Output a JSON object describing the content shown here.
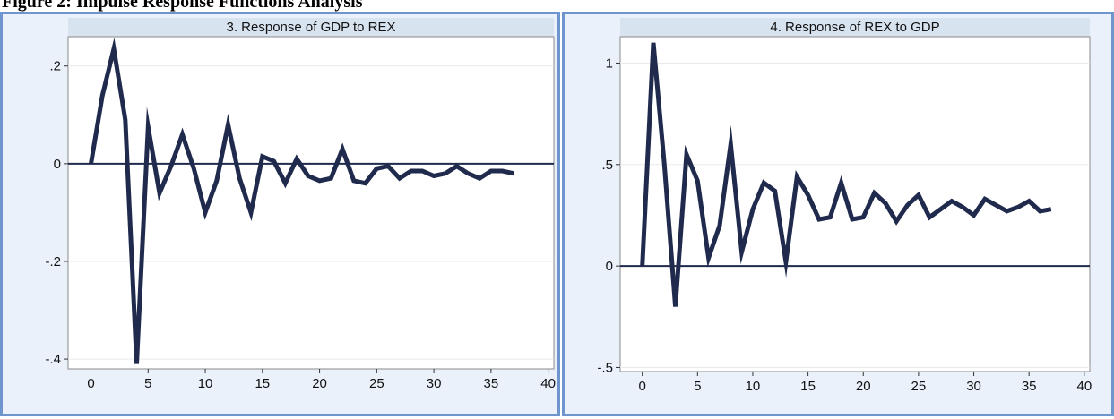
{
  "heading": "Figure 2: Impulse Response Functions Analysis",
  "chart_data": [
    {
      "type": "line",
      "title": "3. Response of GDP to REX",
      "xlabel": "",
      "ylabel": "",
      "xlim": [
        -2,
        40.5
      ],
      "ylim": [
        -0.42,
        0.26
      ],
      "x_ticks": [
        0,
        5,
        10,
        15,
        20,
        25,
        30,
        35,
        40
      ],
      "x_tick_labels": [
        "0",
        "5",
        "10",
        "15",
        "20",
        "25",
        "30",
        "35",
        "40"
      ],
      "y_ticks": [
        -0.4,
        -0.2,
        0,
        0.2
      ],
      "y_tick_labels": [
        "-.4",
        "-.2",
        "0",
        ".2"
      ],
      "zero_line": 0,
      "grid": true,
      "colors": {
        "line": "#1f2a4d",
        "plot_bg": "#ffffff",
        "panel_bg": "#eaf1fa",
        "title_bar": "#d8e3f0",
        "border": "#6f95cf"
      },
      "x": [
        0,
        1,
        2,
        3,
        4,
        5,
        6,
        7,
        8,
        9,
        10,
        11,
        12,
        13,
        14,
        15,
        16,
        17,
        18,
        19,
        20,
        21,
        22,
        23,
        24,
        25,
        26,
        27,
        28,
        29,
        30,
        31,
        32,
        33,
        34,
        35,
        36,
        37
      ],
      "series": [
        {
          "values": [
            0,
            0.14,
            0.235,
            0.09,
            -0.41,
            0.075,
            -0.06,
            -0.005,
            0.06,
            -0.01,
            -0.1,
            -0.035,
            0.08,
            -0.03,
            -0.1,
            0.015,
            0.005,
            -0.04,
            0.01,
            -0.025,
            -0.035,
            -0.03,
            0.03,
            -0.035,
            -0.04,
            -0.01,
            -0.005,
            -0.03,
            -0.015,
            -0.015,
            -0.025,
            -0.02,
            -0.005,
            -0.02,
            -0.03,
            -0.015,
            -0.015,
            -0.02
          ]
        }
      ]
    },
    {
      "type": "line",
      "title": "4. Response of REX to GDP",
      "xlabel": "",
      "ylabel": "",
      "xlim": [
        -2,
        40.5
      ],
      "ylim": [
        -0.52,
        1.13
      ],
      "x_ticks": [
        0,
        5,
        10,
        15,
        20,
        25,
        30,
        35,
        40
      ],
      "x_tick_labels": [
        "0",
        "5",
        "10",
        "15",
        "20",
        "25",
        "30",
        "35",
        "40"
      ],
      "y_ticks": [
        -0.5,
        0,
        0.5,
        1
      ],
      "y_tick_labels": [
        "-.5",
        "0",
        ".5",
        "1"
      ],
      "zero_line": 0,
      "grid": true,
      "colors": {
        "line": "#1f2a4d",
        "plot_bg": "#ffffff",
        "panel_bg": "#eaf1fa",
        "title_bar": "#d8e3f0",
        "border": "#6f95cf"
      },
      "x": [
        0,
        1,
        2,
        3,
        4,
        5,
        6,
        7,
        8,
        9,
        10,
        11,
        12,
        13,
        14,
        15,
        16,
        17,
        18,
        19,
        20,
        21,
        22,
        23,
        24,
        25,
        26,
        27,
        28,
        29,
        30,
        31,
        32,
        33,
        34,
        35,
        36,
        37
      ],
      "series": [
        {
          "values": [
            0,
            1.1,
            0.5,
            -0.2,
            0.55,
            0.42,
            0.04,
            0.2,
            0.6,
            0.07,
            0.28,
            0.41,
            0.37,
            0.02,
            0.44,
            0.35,
            0.23,
            0.24,
            0.41,
            0.23,
            0.24,
            0.36,
            0.31,
            0.22,
            0.3,
            0.35,
            0.24,
            0.28,
            0.32,
            0.29,
            0.25,
            0.33,
            0.3,
            0.27,
            0.29,
            0.32,
            0.27,
            0.28
          ]
        }
      ]
    }
  ]
}
